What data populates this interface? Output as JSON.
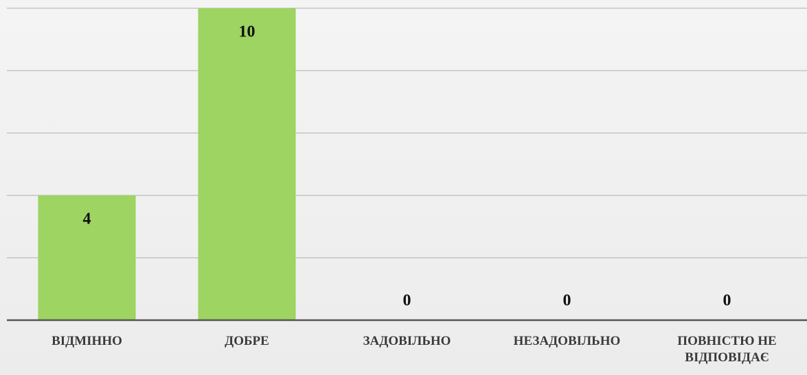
{
  "chart_data": {
    "type": "bar",
    "categories": [
      "ВІДМІННО",
      "ДОБРЕ",
      "ЗАДОВІЛЬНО",
      "НЕЗАДОВІЛЬНО",
      "ПОВНІСТЮ НЕ ВІДПОВІДАЄ"
    ],
    "values": [
      4,
      10,
      0,
      0,
      0
    ],
    "color": "#9ed462",
    "ylim": [
      0,
      10
    ],
    "yticks": [
      0,
      2,
      4,
      6,
      8,
      10
    ],
    "grid": true
  }
}
